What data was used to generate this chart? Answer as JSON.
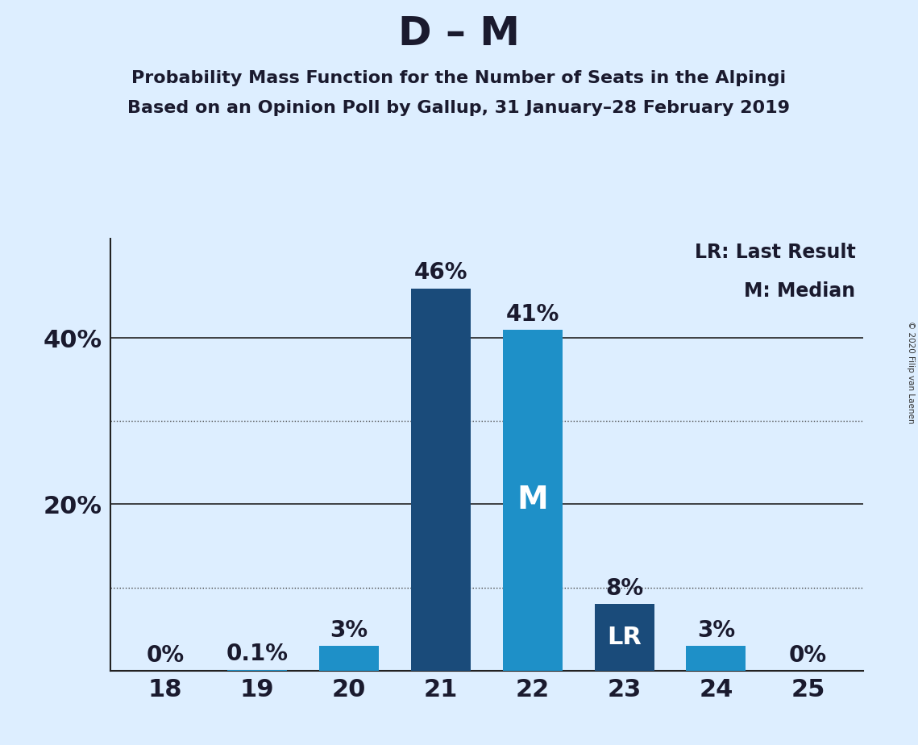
{
  "title": "D – M",
  "subtitle1": "Probability Mass Function for the Number of Seats in the Alpingi",
  "subtitle2": "Based on an Opinion Poll by Gallup, 31 January–28 February 2019",
  "copyright": "© 2020 Filip van Laenen",
  "categories": [
    18,
    19,
    20,
    21,
    22,
    23,
    24,
    25
  ],
  "values": [
    0.0,
    0.1,
    3.0,
    46.0,
    41.0,
    8.0,
    3.0,
    0.0
  ],
  "bar_colors": [
    "#1e90c8",
    "#1e90c8",
    "#1e90c8",
    "#1a4b7a",
    "#1e90c8",
    "#1a4b7a",
    "#1e90c8",
    "#1e90c8"
  ],
  "median_seat": 22,
  "last_result_seat": 23,
  "bar_labels": [
    "0%",
    "0.1%",
    "3%",
    "46%",
    "41%",
    "8%",
    "3%",
    "0%"
  ],
  "ytick_positions": [
    0,
    20,
    40
  ],
  "ytick_labels": [
    "",
    "20%",
    "40%"
  ],
  "dotted_yticks": [
    10,
    30
  ],
  "solid_yticks": [
    20,
    40
  ],
  "background_color": "#ddeeff",
  "title_fontsize": 36,
  "subtitle_fontsize": 16,
  "tick_fontsize": 22,
  "legend_fontsize": 17,
  "bar_label_fontsize": 20,
  "inner_label_fontsize": 22
}
